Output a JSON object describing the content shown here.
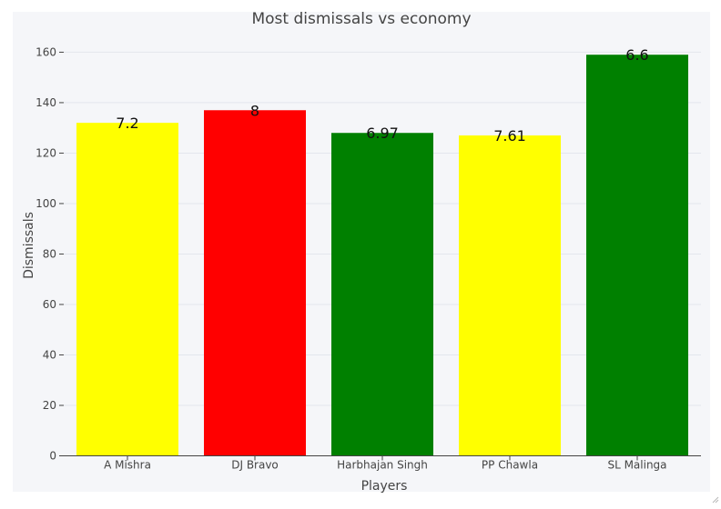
{
  "chart_data": {
    "type": "bar",
    "title": "Most dismissals vs economy",
    "xlabel": "Players",
    "ylabel": "Dismissals",
    "categories": [
      "A Mishra",
      "DJ Bravo",
      "Harbhajan Singh",
      "PP Chawla",
      "SL Malinga"
    ],
    "values": [
      132,
      137,
      128,
      127,
      159
    ],
    "data_labels": [
      "7.2",
      "8",
      "6.97",
      "7.61",
      "6.6"
    ],
    "bar_colors": [
      "#ffff00",
      "#ff0000",
      "#008000",
      "#ffff00",
      "#008000"
    ],
    "ylim": [
      0,
      167
    ],
    "yticks": [
      0,
      20,
      40,
      60,
      80,
      100,
      120,
      140,
      160
    ],
    "grid": true,
    "plot_background": "#f5f6f9"
  }
}
